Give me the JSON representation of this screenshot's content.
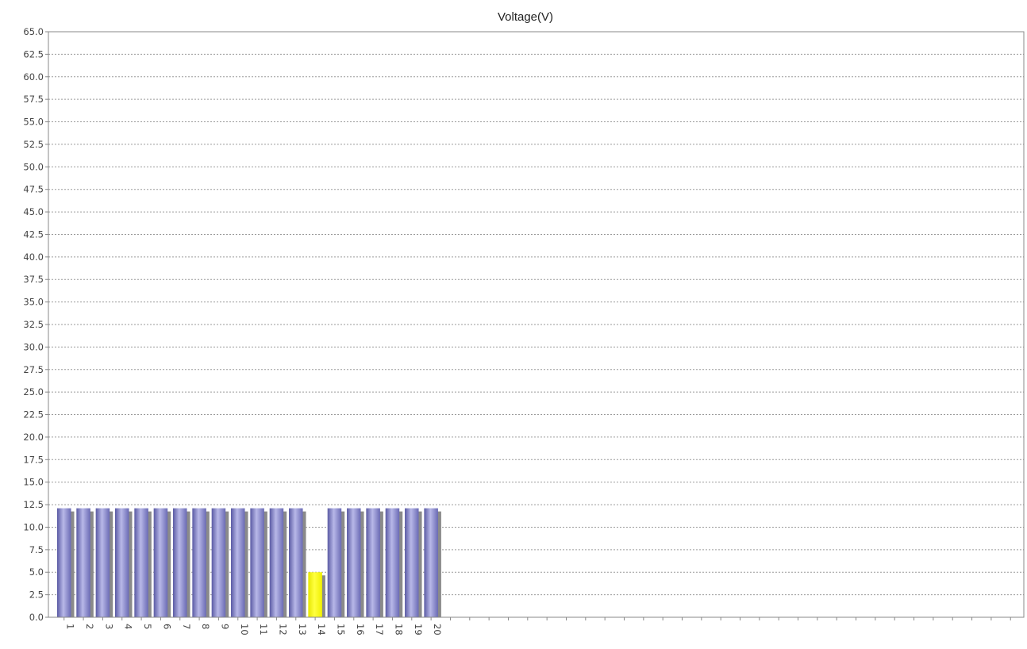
{
  "chart_data": {
    "type": "bar",
    "title": "Voltage(V)",
    "xlabel": "",
    "ylabel": "",
    "ylim": [
      0,
      65
    ],
    "ytick_step": 2.5,
    "grid": true,
    "total_slots": 50,
    "categories": [
      "1",
      "2",
      "3",
      "4",
      "5",
      "6",
      "7",
      "8",
      "9",
      "10",
      "11",
      "12",
      "13",
      "14",
      "15",
      "16",
      "17",
      "18",
      "19",
      "20"
    ],
    "values": [
      12.1,
      12.1,
      12.1,
      12.1,
      12.1,
      12.1,
      12.1,
      12.1,
      12.1,
      12.1,
      12.1,
      12.1,
      12.1,
      5.0,
      12.1,
      12.1,
      12.1,
      12.1,
      12.1,
      12.1
    ],
    "highlight_index": 13,
    "colors": {
      "bar": "#8080c8",
      "bar_light": "#b4b4e6",
      "bar_dark": "#5c5ca6",
      "highlight": "#ffff00",
      "highlight_dark": "#c8c800",
      "shadow": "#8a8a8a",
      "grid": "#9a9a9a",
      "axis": "#888888"
    }
  }
}
